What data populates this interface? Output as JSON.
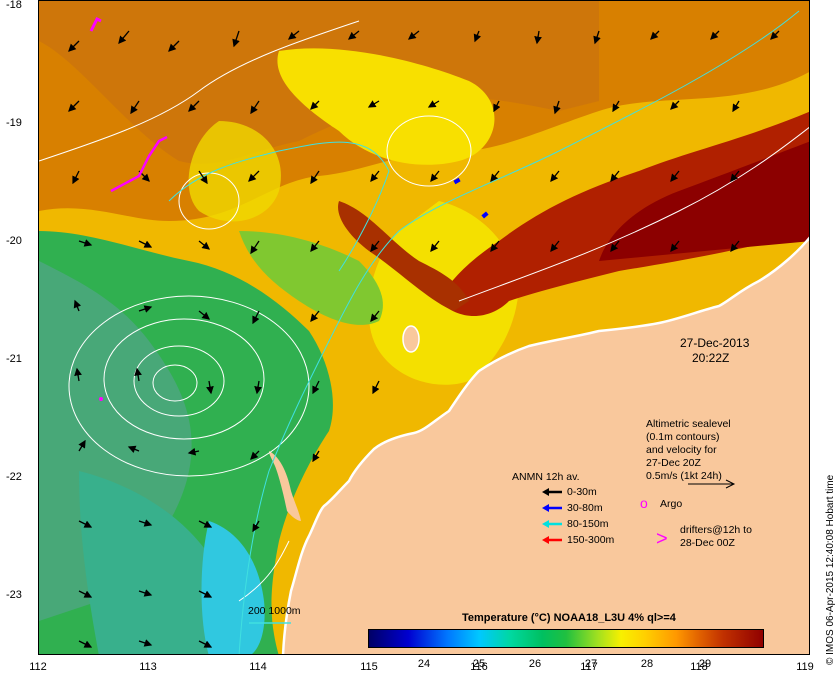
{
  "y_axis_labels": [
    "-18",
    "-19",
    "-20",
    "-21",
    "-22",
    "-23"
  ],
  "x_axis_labels": [
    "112",
    "113",
    "114",
    "115",
    "116",
    "117",
    "118",
    "119"
  ],
  "date_label": "27-Dec-2013",
  "time_label": "20:22Z",
  "altimetry_text": [
    "Altimetric sealevel",
    "(0.1m contours)",
    "and velocity for",
    "27-Dec 20Z",
    "0.5m/s (1kt 24h)"
  ],
  "anmn_title": "ANMN 12h av.",
  "anmn_items": [
    {
      "label": "0-30m",
      "color": "#000000"
    },
    {
      "label": "30-80m",
      "color": "#0000ff"
    },
    {
      "label": "80-150m",
      "color": "#00e0e0"
    },
    {
      "label": "150-300m",
      "color": "#ff0000"
    }
  ],
  "argo_label": "Argo",
  "argo_symbol": "o",
  "argo_color": "#ff00ff",
  "drifters_line1": "drifters@12h to",
  "drifters_line2": "28-Dec 00Z",
  "drifter_symbol": ">",
  "drifter_color": "#ff00ff",
  "bathy_label": "200  1000m",
  "colorbar_title": "Temperature (°C) NOAA18_L3U 4% ql>=4",
  "colorbar_ticks": [
    "24",
    "25",
    "26",
    "27",
    "28",
    "29"
  ],
  "credit": "© IMOS 06-Apr-2015 12:40:08 Hobart time",
  "colors": {
    "land": "#f9c89c",
    "coast": "#ffffff",
    "contour": "#ffffff",
    "bathy": "#40e0e0"
  }
}
